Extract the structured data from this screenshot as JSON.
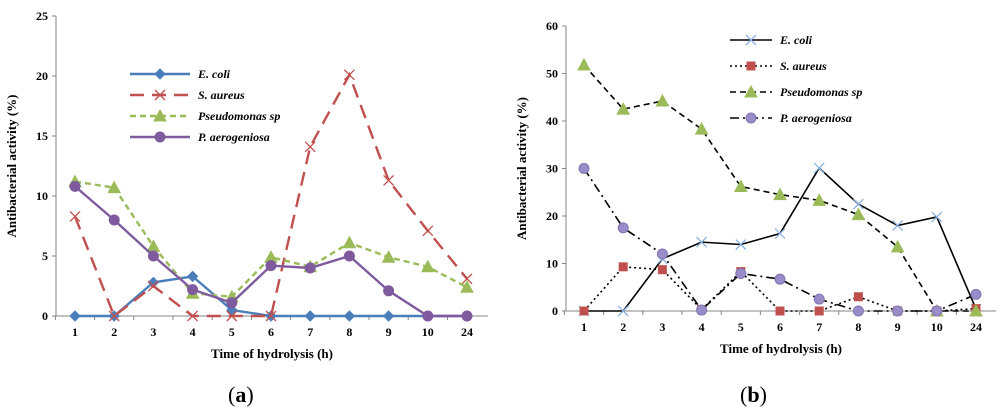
{
  "chart_data": [
    {
      "type": "line",
      "panel_label": "a",
      "title": "",
      "xlabel": "Time of hydrolysis (h)",
      "ylabel": "Antibacterial activity (%)",
      "categories": [
        "1",
        "2",
        "3",
        "4",
        "5",
        "6",
        "7",
        "8",
        "9",
        "10",
        "24"
      ],
      "ylim": [
        0,
        25
      ],
      "yticks": [
        "0",
        "5",
        "10",
        "15",
        "20",
        "25"
      ],
      "legend_position": "center-left",
      "series": [
        {
          "name": "E. coli",
          "color": "#4a7ebb",
          "style": "solid",
          "marker": "diamond",
          "values": [
            0,
            0,
            2.8,
            3.3,
            0.5,
            0,
            0,
            0,
            0,
            0,
            0
          ]
        },
        {
          "name": "S. aureus",
          "color": "#c0504d",
          "style": "longdash",
          "marker": "x",
          "values": [
            8.3,
            0,
            2.5,
            0,
            0,
            0,
            14.1,
            20.1,
            11.3,
            7.1,
            3.1
          ]
        },
        {
          "name": "Pseudomonas sp",
          "color": "#9bbb59",
          "style": "dash",
          "marker": "triangle",
          "values": [
            11.2,
            10.7,
            5.8,
            1.9,
            1.6,
            4.9,
            4.1,
            6.1,
            4.9,
            4.1,
            2.4
          ]
        },
        {
          "name": "P. aerogeniosa",
          "color": "#7f5a9e",
          "style": "solid",
          "marker": "circle",
          "values": [
            10.8,
            8.0,
            5.0,
            2.2,
            1.1,
            4.2,
            4.0,
            5.0,
            2.1,
            0,
            0
          ]
        }
      ]
    },
    {
      "type": "line",
      "panel_label": "b",
      "title": "",
      "xlabel": "Time of hydrolysis (h)",
      "ylabel": "Antibacterial activity (%)",
      "categories": [
        "1",
        "2",
        "3",
        "4",
        "5",
        "6",
        "7",
        "8",
        "9",
        "10",
        "24"
      ],
      "ylim": [
        0,
        60
      ],
      "yticks": [
        "0",
        "10",
        "20",
        "30",
        "40",
        "50",
        "60"
      ],
      "legend_position": "top-center",
      "series": [
        {
          "name": "E. coli",
          "color": "#000000",
          "style": "solid",
          "marker": "x",
          "values": [
            0,
            0,
            11.0,
            14.5,
            14.0,
            16.3,
            30.1,
            22.5,
            18.0,
            19.8,
            0.4
          ]
        },
        {
          "name": "S. aureus",
          "color": "#000000",
          "style": "dotted",
          "marker": "square",
          "values": [
            0,
            9.3,
            8.7,
            0.3,
            8.3,
            0,
            0,
            3.0,
            0,
            0,
            0.5
          ]
        },
        {
          "name": "Pseudomonas sp",
          "color": "#000000",
          "style": "dash",
          "marker": "triangle",
          "values": [
            51.8,
            42.5,
            44.2,
            38.3,
            26.2,
            24.5,
            23.3,
            20.3,
            13.5,
            0,
            0
          ]
        },
        {
          "name": "P. aerogeniosa",
          "color": "#000000",
          "style": "dashdot",
          "marker": "circle",
          "values": [
            30.0,
            17.5,
            12.0,
            0.2,
            7.9,
            6.7,
            2.5,
            0,
            0,
            0,
            3.5
          ]
        }
      ]
    }
  ]
}
